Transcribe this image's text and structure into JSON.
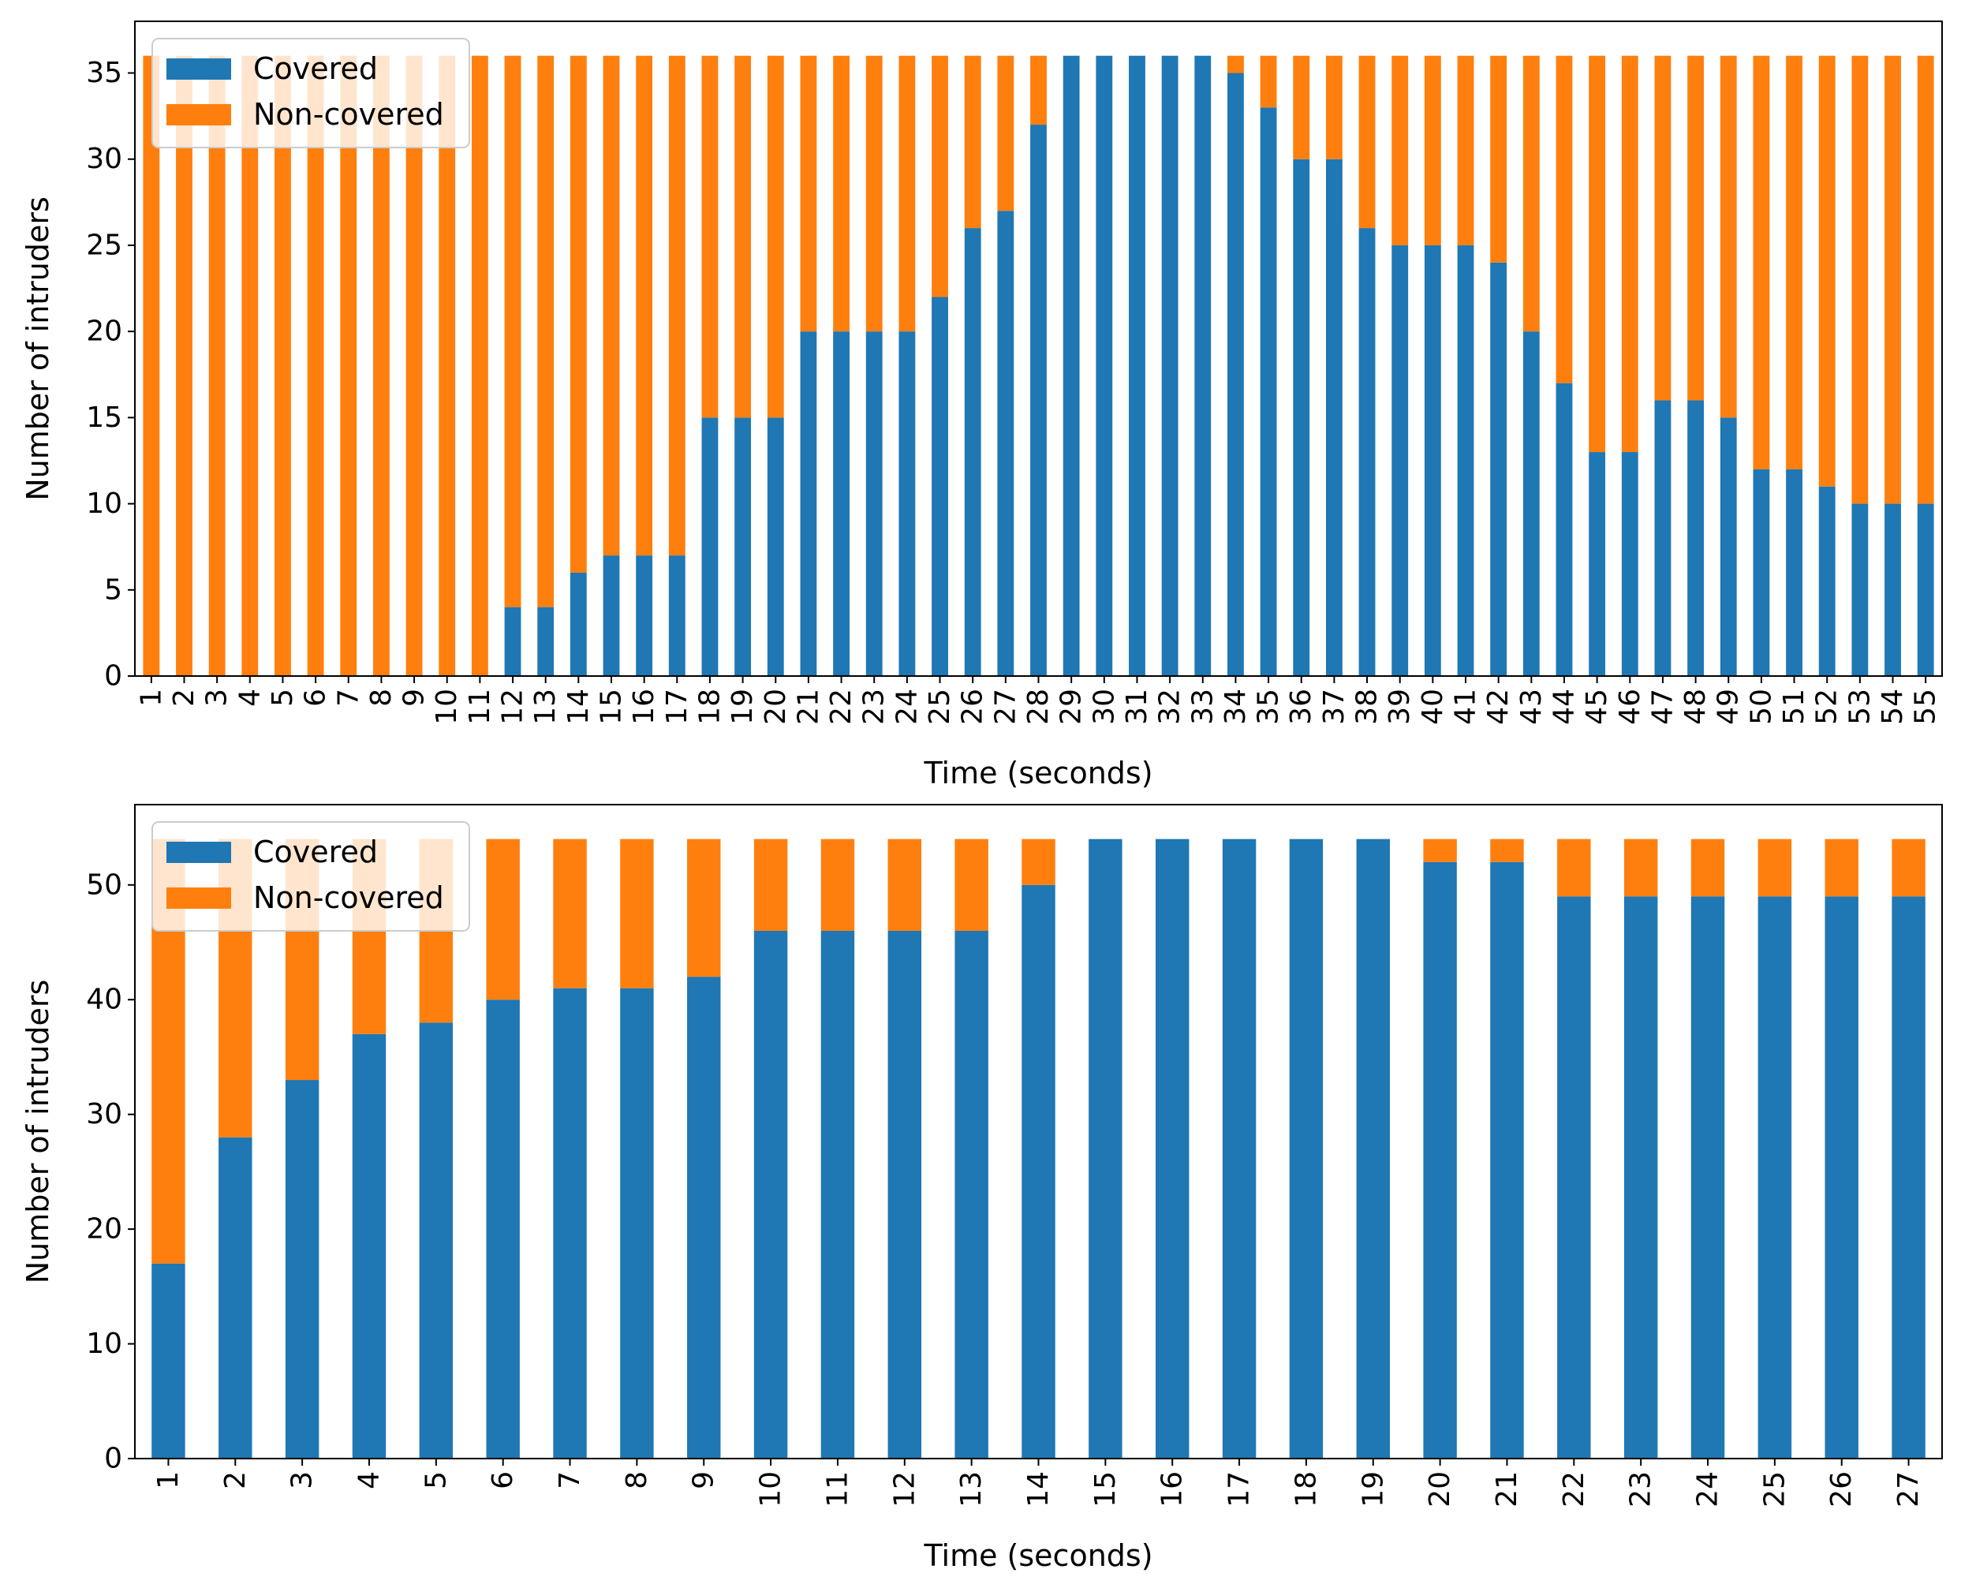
{
  "colors": {
    "covered": "#1f77b4",
    "non_covered": "#ff7f0e"
  },
  "chart_data": [
    {
      "type": "bar",
      "stacked": true,
      "title": "",
      "xlabel": "Time (seconds)",
      "ylabel": "Number of intruders",
      "ylim": [
        0,
        38
      ],
      "yticks": [
        0,
        5,
        10,
        15,
        20,
        25,
        30,
        35
      ],
      "legend_position": "upper-left",
      "categories": [
        "1",
        "2",
        "3",
        "4",
        "5",
        "6",
        "7",
        "8",
        "9",
        "10",
        "11",
        "12",
        "13",
        "14",
        "15",
        "16",
        "17",
        "18",
        "19",
        "20",
        "21",
        "22",
        "23",
        "24",
        "25",
        "26",
        "27",
        "28",
        "29",
        "30",
        "31",
        "32",
        "33",
        "34",
        "35",
        "36",
        "37",
        "38",
        "39",
        "40",
        "41",
        "42",
        "43",
        "44",
        "45",
        "46",
        "47",
        "48",
        "49",
        "50",
        "51",
        "52",
        "53",
        "54",
        "55"
      ],
      "series": [
        {
          "name": "Covered",
          "color": "#1f77b4",
          "values": [
            0,
            0,
            0,
            0,
            0,
            0,
            0,
            0,
            0,
            0,
            0,
            4,
            4,
            6,
            7,
            7,
            7,
            15,
            15,
            15,
            20,
            20,
            20,
            20,
            22,
            26,
            27,
            32,
            36,
            36,
            36,
            36,
            36,
            35,
            33,
            30,
            30,
            26,
            25,
            25,
            25,
            24,
            20,
            17,
            13,
            13,
            16,
            16,
            15,
            12,
            12,
            11,
            10,
            10,
            10
          ]
        },
        {
          "name": "Non-covered",
          "color": "#ff7f0e",
          "values": [
            36,
            36,
            36,
            36,
            36,
            36,
            36,
            36,
            36,
            36,
            36,
            32,
            32,
            30,
            29,
            29,
            29,
            21,
            21,
            21,
            16,
            16,
            16,
            16,
            14,
            10,
            9,
            4,
            0,
            0,
            0,
            0,
            0,
            1,
            3,
            6,
            6,
            10,
            11,
            11,
            11,
            12,
            16,
            19,
            23,
            23,
            20,
            20,
            21,
            24,
            24,
            25,
            26,
            26,
            26
          ]
        }
      ]
    },
    {
      "type": "bar",
      "stacked": true,
      "title": "",
      "xlabel": "Time (seconds)",
      "ylabel": "Number of intruders",
      "ylim": [
        0,
        57
      ],
      "yticks": [
        0,
        10,
        20,
        30,
        40,
        50
      ],
      "legend_position": "upper-left",
      "categories": [
        "1",
        "2",
        "3",
        "4",
        "5",
        "6",
        "7",
        "8",
        "9",
        "10",
        "11",
        "12",
        "13",
        "14",
        "15",
        "16",
        "17",
        "18",
        "19",
        "20",
        "21",
        "22",
        "23",
        "24",
        "25",
        "26",
        "27"
      ],
      "series": [
        {
          "name": "Covered",
          "color": "#1f77b4",
          "values": [
            17,
            28,
            33,
            37,
            38,
            40,
            41,
            41,
            42,
            46,
            46,
            46,
            46,
            50,
            54,
            54,
            54,
            54,
            54,
            52,
            52,
            49,
            49,
            49,
            49,
            49,
            49
          ]
        },
        {
          "name": "Non-covered",
          "color": "#ff7f0e",
          "values": [
            37,
            26,
            21,
            17,
            16,
            14,
            13,
            13,
            12,
            8,
            8,
            8,
            8,
            4,
            0,
            0,
            0,
            0,
            0,
            2,
            2,
            5,
            5,
            5,
            5,
            5,
            5
          ]
        }
      ]
    }
  ]
}
